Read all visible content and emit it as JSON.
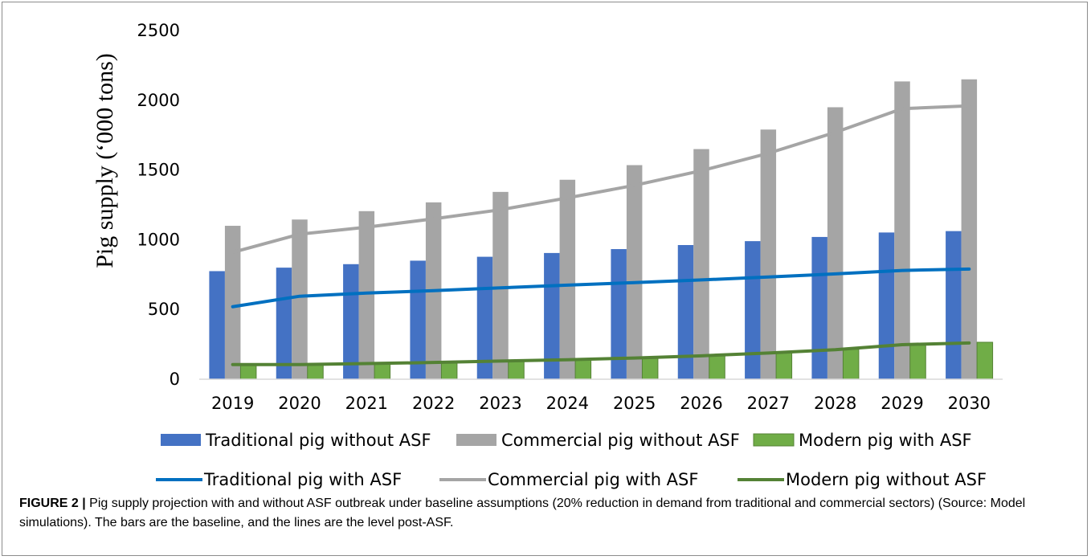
{
  "chart_data": {
    "type": "bar",
    "ylabel": "Pig supply (‘000 tons)",
    "ylim": [
      0,
      2500
    ],
    "yticks": [
      0,
      500,
      1000,
      1500,
      2000,
      2500
    ],
    "categories": [
      "2019",
      "2020",
      "2021",
      "2022",
      "2023",
      "2024",
      "2025",
      "2026",
      "2027",
      "2028",
      "2029",
      "2030"
    ],
    "bars": [
      {
        "name": "Traditional pig without ASF",
        "color": "#4472c4",
        "values": [
          775,
          800,
          825,
          850,
          878,
          905,
          933,
          962,
          990,
          1020,
          1052,
          1062
        ]
      },
      {
        "name": "Commercial pig without ASF",
        "color": "#a5a5a5",
        "values": [
          1100,
          1145,
          1205,
          1268,
          1343,
          1430,
          1535,
          1650,
          1790,
          1950,
          2135,
          2150
        ]
      },
      {
        "name": "Modern pig with ASF",
        "color": "#70ad47",
        "values": [
          110,
          110,
          115,
          122,
          130,
          142,
          155,
          170,
          190,
          215,
          255,
          265
        ]
      }
    ],
    "lines": [
      {
        "name": "Traditional pig with ASF",
        "color": "#0070c0",
        "values": [
          520,
          595,
          618,
          635,
          655,
          675,
          693,
          712,
          733,
          755,
          780,
          790
        ]
      },
      {
        "name": "Commercial pig with ASF",
        "color": "#a5a5a5",
        "values": [
          910,
          1040,
          1090,
          1150,
          1215,
          1300,
          1390,
          1495,
          1620,
          1770,
          1940,
          1960
        ]
      },
      {
        "name": "Modern pig without ASF",
        "color": "#548235",
        "values": [
          105,
          105,
          112,
          120,
          130,
          140,
          152,
          168,
          188,
          212,
          248,
          260
        ]
      }
    ],
    "legend_position": "bottom"
  },
  "caption": {
    "label": "FIGURE 2 |",
    "text": " Pig supply projection with and without ASF outbreak under baseline assumptions (20% reduction in demand from traditional and commercial sectors) (Source: Model simulations). The bars are the baseline, and the lines are the level post-ASF."
  }
}
